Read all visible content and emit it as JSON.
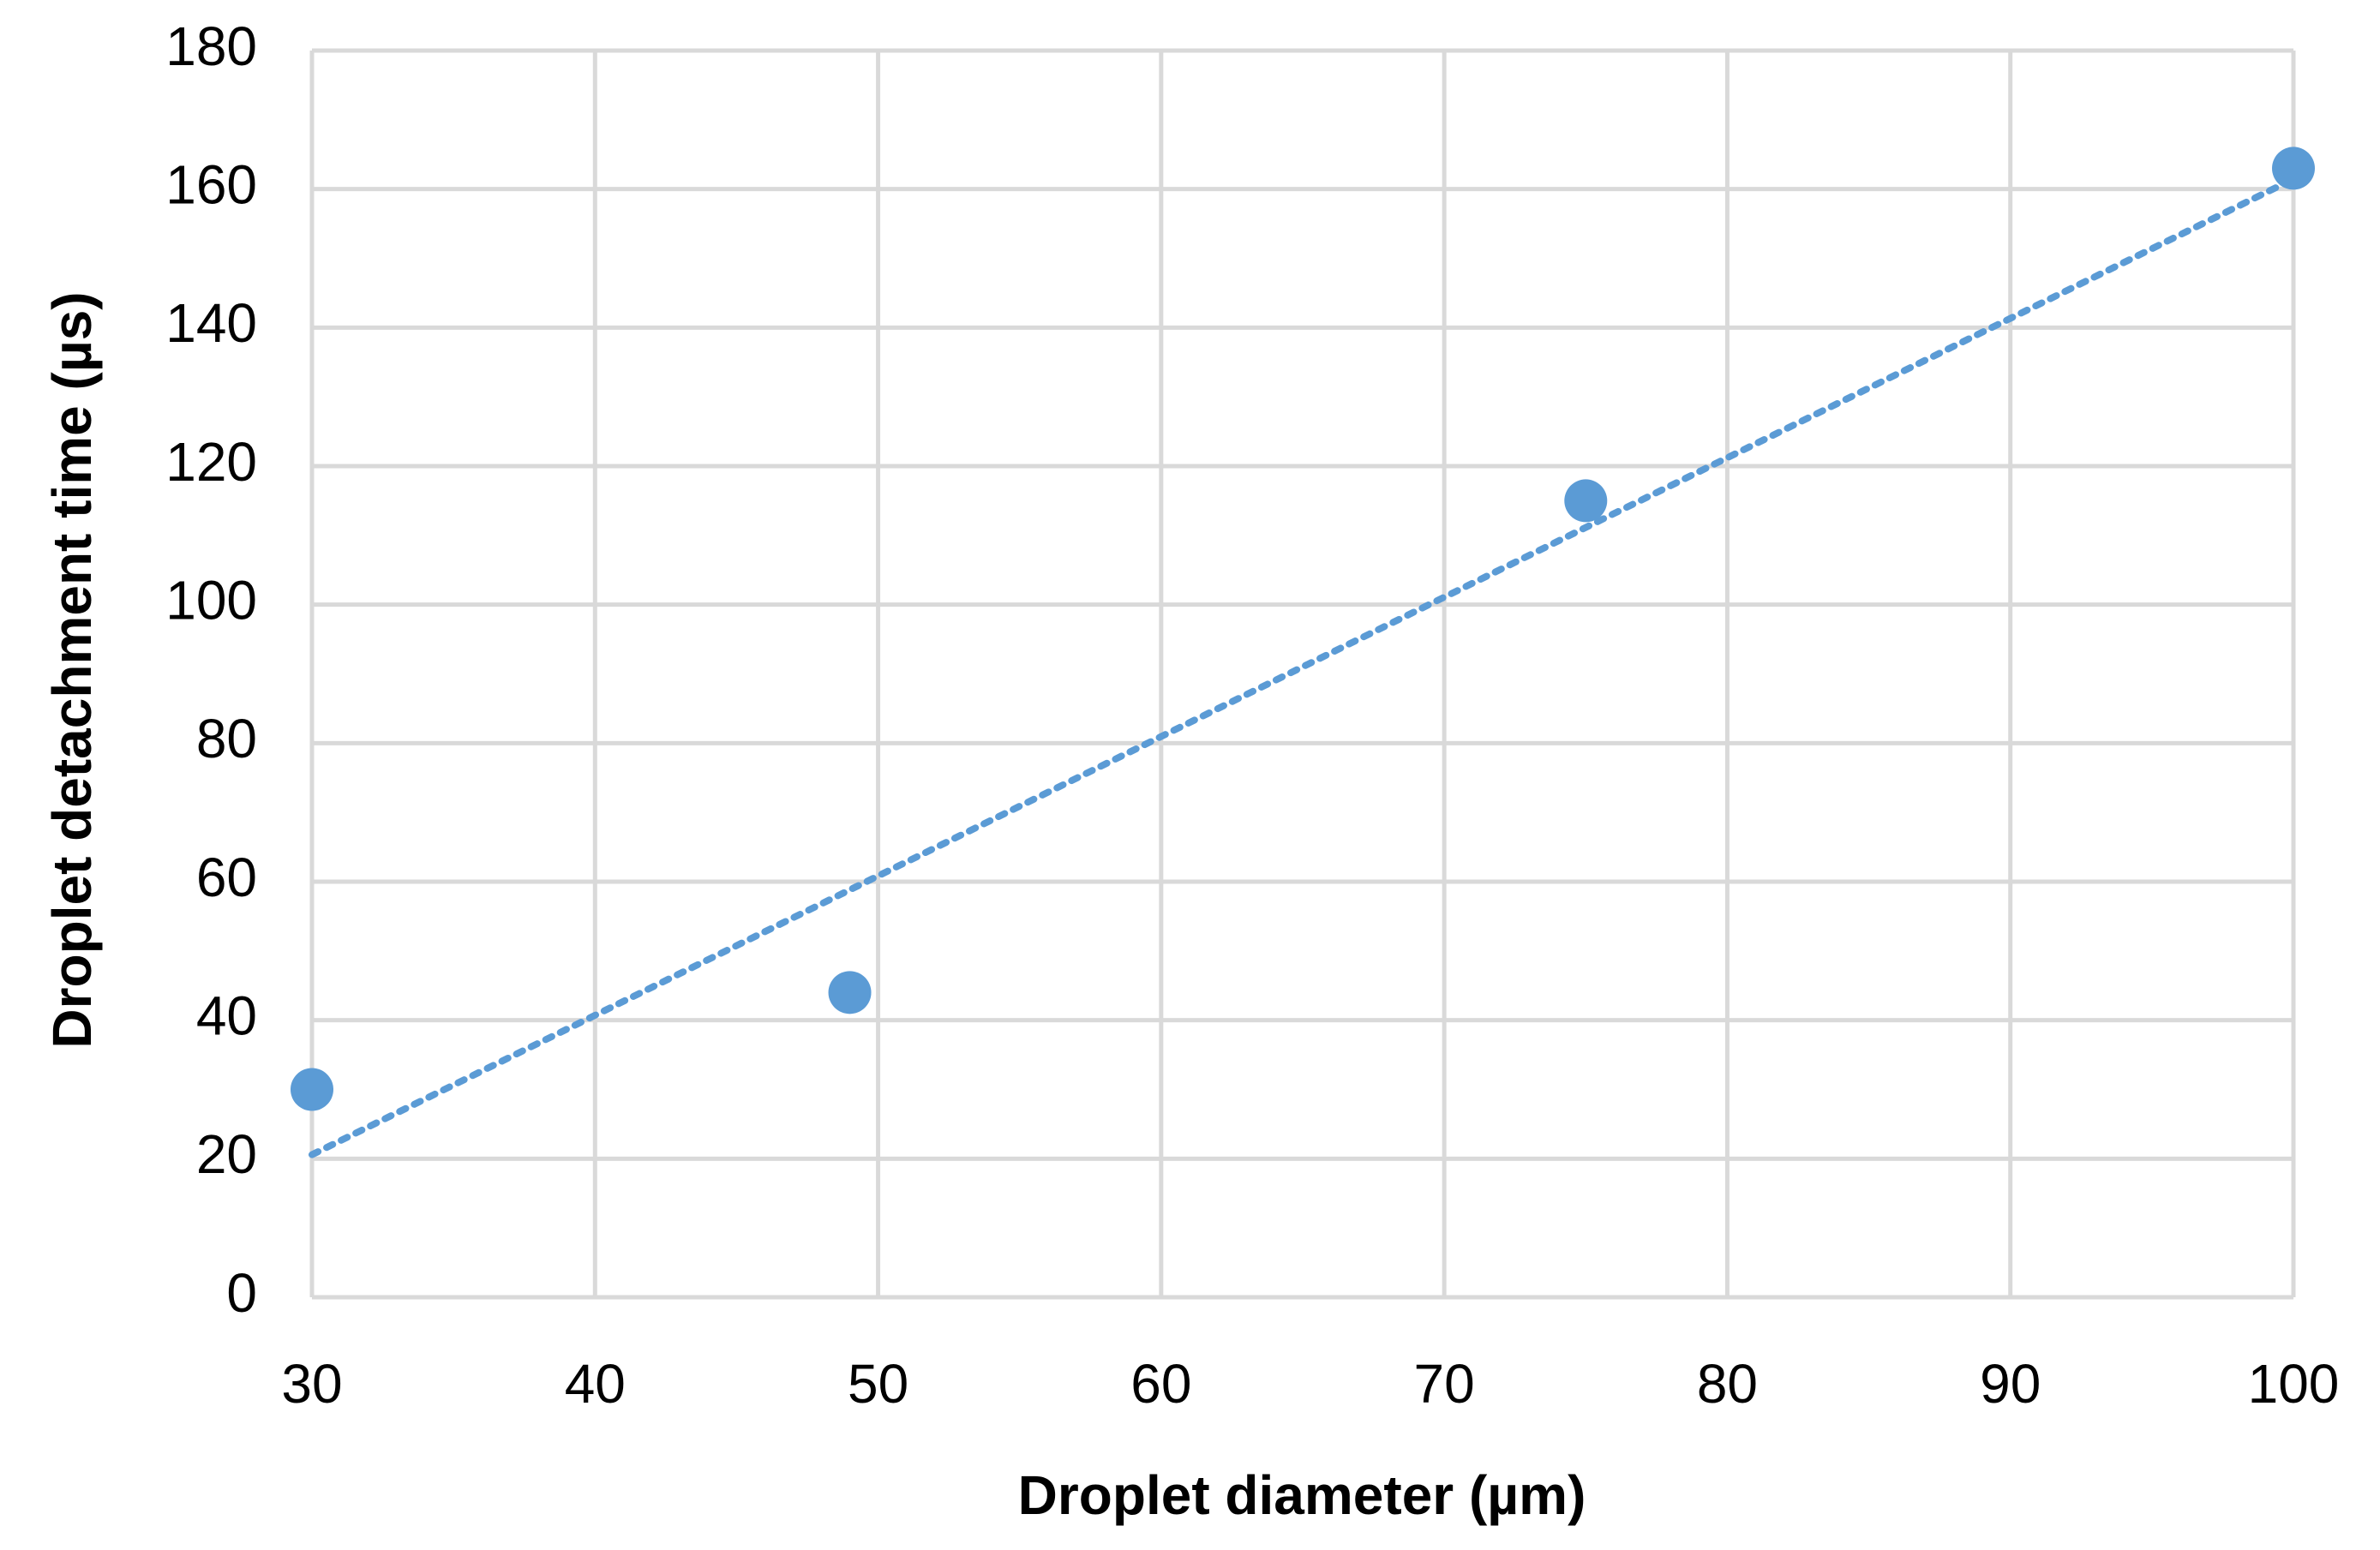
{
  "chart_data": {
    "type": "scatter",
    "x_label": "Droplet diameter (µm)",
    "y_label": "Droplet detachment time (µs)",
    "x": [
      30,
      49,
      75,
      100
    ],
    "values": [
      30,
      44,
      115,
      163
    ],
    "color": "#5b9bd5",
    "trendline": "linear",
    "xlim": [
      30,
      100
    ],
    "xticks": [
      30,
      40,
      50,
      60,
      70,
      80,
      90,
      100
    ],
    "ylim": [
      0,
      180
    ],
    "yticks": [
      0,
      20,
      40,
      60,
      80,
      100,
      120,
      140,
      160,
      180
    ],
    "grid": true
  }
}
